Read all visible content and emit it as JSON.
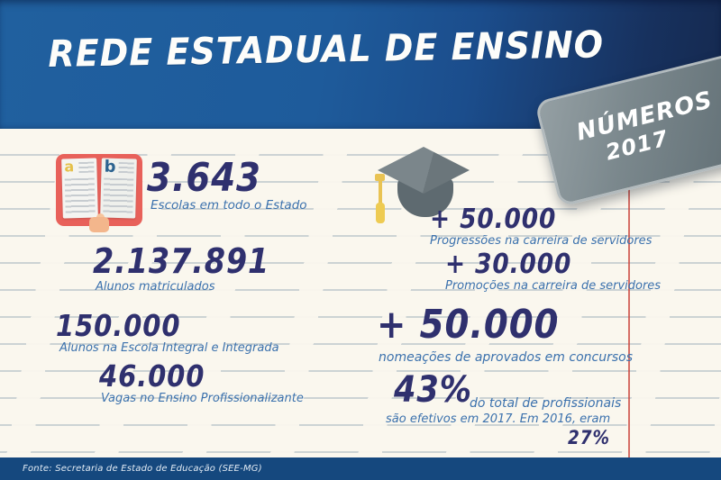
{
  "header": {
    "title": "REDE ESTADUAL DE ENSINO"
  },
  "badge": {
    "line1": "NÚMEROS",
    "line2": "2017"
  },
  "icons": {
    "book": {
      "name": "open-book-icon",
      "letter_left": "a",
      "letter_right": "b"
    },
    "cap": {
      "name": "graduation-cap-icon"
    }
  },
  "stats": {
    "left": [
      {
        "value": "3.643",
        "label": "Escolas em todo o Estado"
      },
      {
        "value": "2.137.891",
        "label": "Alunos matriculados"
      },
      {
        "value": "150.000",
        "label": "Alunos na Escola Integral e Integrada"
      },
      {
        "value": "46.000",
        "label": "Vagas no Ensino Profissionalizante"
      }
    ],
    "right": [
      {
        "value": "+ 50.000",
        "label": "Progressões na carreira de servidores"
      },
      {
        "value": "+ 30.000",
        "label": "Promoções na carreira de servidores"
      },
      {
        "value": "+ 50.000",
        "label": "nomeações de aprovados em concursos"
      }
    ],
    "efetivos": {
      "value": "43%",
      "label_line1": "do total de profissionais",
      "label_line2": "são efetivos em 2017. Em 2016, eram",
      "value2": "27%"
    }
  },
  "footer": {
    "source": "Fonte: Secretaria de Estado de Educação (SEE-MG)"
  },
  "colors": {
    "header_blue": "#1e5b9b",
    "header_dark_navy": "#15294f",
    "number_navy": "#2f306e",
    "label_blue": "#3b71ad",
    "paper": "#faf7ee",
    "rule_line": "#8098aa",
    "margin_red": "#c94238",
    "badge_gray": "#6b787e",
    "badge_border": "#b2babd",
    "footer_blue": "#15487e",
    "book_red": "#e8615a",
    "hand_peach": "#f3b68c",
    "tassel_yellow": "#e9c353",
    "cap_gray": "#5e6a70"
  },
  "chart_data": {
    "type": "table",
    "title": "REDE ESTADUAL DE ENSINO — NÚMEROS 2017",
    "rows": [
      {
        "metric": "Escolas em todo o Estado",
        "value": "3.643"
      },
      {
        "metric": "Alunos matriculados",
        "value": "2.137.891"
      },
      {
        "metric": "Alunos na Escola Integral e Integrada",
        "value": "150.000"
      },
      {
        "metric": "Vagas no Ensino Profissionalizante",
        "value": "46.000"
      },
      {
        "metric": "Progressões na carreira de servidores",
        "value": "+ 50.000"
      },
      {
        "metric": "Promoções na carreira de servidores",
        "value": "+ 30.000"
      },
      {
        "metric": "Nomeações de aprovados em concursos",
        "value": "+ 50.000"
      },
      {
        "metric": "Profissionais efetivos em 2017 (% do total)",
        "value": "43%"
      },
      {
        "metric": "Profissionais efetivos em 2016 (% do total)",
        "value": "27%"
      }
    ],
    "source": "Fonte: Secretaria de Estado de Educação (SEE-MG)"
  }
}
